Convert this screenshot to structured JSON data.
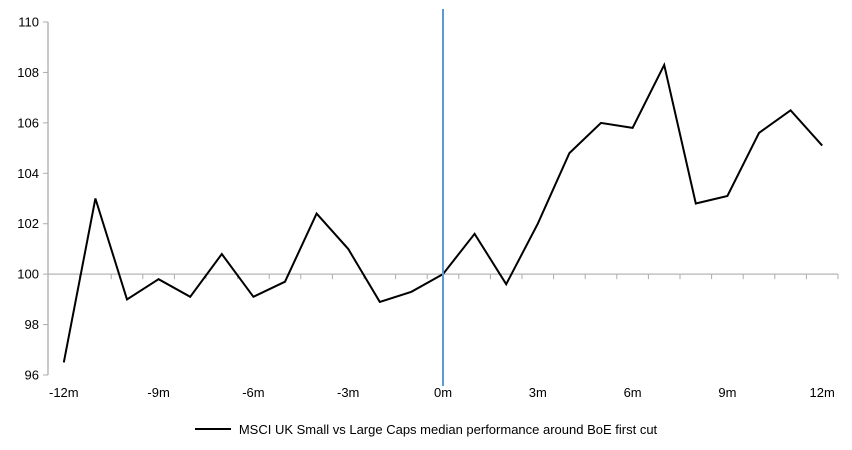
{
  "chart_data": {
    "type": "line",
    "title": "",
    "x_months": [
      -12,
      -11,
      -10,
      -9,
      -8,
      -7,
      -6,
      -5,
      -4,
      -3,
      -2,
      -1,
      0,
      1,
      2,
      3,
      4,
      5,
      6,
      7,
      8,
      9,
      10,
      11,
      12
    ],
    "series": [
      {
        "name": "MSCI UK Small vs Large Caps median performance around BoE first cut",
        "color": "#000000",
        "values": [
          96.5,
          103.0,
          99.0,
          99.8,
          99.1,
          100.8,
          99.1,
          99.7,
          102.4,
          101.0,
          98.9,
          99.3,
          100.0,
          101.6,
          99.6,
          102.0,
          104.8,
          106.0,
          105.8,
          108.3,
          102.8,
          103.1,
          105.6,
          106.5,
          105.1
        ]
      }
    ],
    "ylim": [
      96,
      110
    ],
    "ytick_step": 2,
    "ytick_labels": [
      "110",
      "108",
      "106",
      "104",
      "102",
      "100",
      "98",
      "96"
    ],
    "xtick_labels": [
      {
        "x": -12,
        "label": "-12m"
      },
      {
        "x": -9,
        "label": "-9m"
      },
      {
        "x": -6,
        "label": "-6m"
      },
      {
        "x": -3,
        "label": "-3m"
      },
      {
        "x": 0,
        "label": "0m"
      },
      {
        "x": 3,
        "label": "3m"
      },
      {
        "x": 6,
        "label": "6m"
      },
      {
        "x": 9,
        "label": "9m"
      },
      {
        "x": 12,
        "label": "12m"
      }
    ],
    "baseline_value": 100,
    "event_line": {
      "x": 0,
      "color": "#5B9BD5"
    },
    "grid": false,
    "legend_position": "bottom",
    "colors": {
      "series_line": "#000000",
      "event_line": "#5B9BD5",
      "axis": "#ACACAC",
      "baseline": "#B5B5B5",
      "text": "#000000",
      "background": "#FFFFFF"
    }
  }
}
